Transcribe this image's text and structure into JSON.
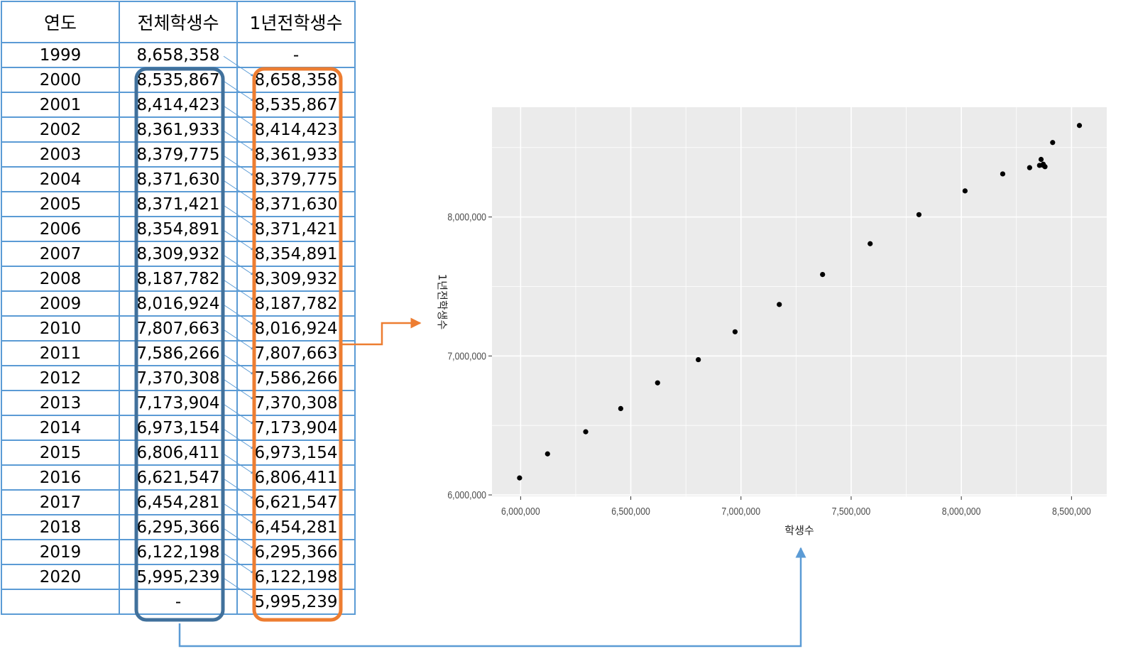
{
  "table": {
    "headers": [
      "연도",
      "전체학생수",
      "1년전학생수"
    ],
    "rows": [
      [
        "1999",
        "8,658,358",
        "-"
      ],
      [
        "2000",
        "8,535,867",
        "8,658,358"
      ],
      [
        "2001",
        "8,414,423",
        "8,535,867"
      ],
      [
        "2002",
        "8,361,933",
        "8,414,423"
      ],
      [
        "2003",
        "8,379,775",
        "8,361,933"
      ],
      [
        "2004",
        "8,371,630",
        "8,379,775"
      ],
      [
        "2005",
        "8,371,421",
        "8,371,630"
      ],
      [
        "2006",
        "8,354,891",
        "8,371,421"
      ],
      [
        "2007",
        "8,309,932",
        "8,354,891"
      ],
      [
        "2008",
        "8,187,782",
        "8,309,932"
      ],
      [
        "2009",
        "8,016,924",
        "8,187,782"
      ],
      [
        "2010",
        "7,807,663",
        "8,016,924"
      ],
      [
        "2011",
        "7,586,266",
        "7,807,663"
      ],
      [
        "2012",
        "7,370,308",
        "7,586,266"
      ],
      [
        "2013",
        "7,173,904",
        "7,370,308"
      ],
      [
        "2014",
        "6,973,154",
        "7,173,904"
      ],
      [
        "2015",
        "6,806,411",
        "6,973,154"
      ],
      [
        "2016",
        "6,621,547",
        "6,806,411"
      ],
      [
        "2017",
        "6,454,281",
        "6,621,547"
      ],
      [
        "2018",
        "6,295,366",
        "6,454,281"
      ],
      [
        "2019",
        "6,122,198",
        "6,295,366"
      ],
      [
        "2020",
        "5,995,239",
        "6,122,198"
      ],
      [
        "",
        "-",
        "5,995,239"
      ]
    ]
  },
  "colors": {
    "table_border": "#5b9bd5",
    "current_box": "#41719c",
    "lag_box": "#ed7d31",
    "shift_arrows": "#5b9bd5",
    "panel_bg": "#ebebeb",
    "grid": "#ffffff",
    "point": "#000000"
  },
  "chart_data": {
    "type": "scatter",
    "xlabel": "학생수",
    "ylabel": "1년전학생수",
    "xlim": [
      5870000,
      8660000
    ],
    "ylim": [
      5990000,
      8790000
    ],
    "xticks": [
      6000000,
      6500000,
      7000000,
      7500000,
      8000000,
      8500000
    ],
    "xtick_labels": [
      "6,000,000",
      "6,500,000",
      "7,000,000",
      "7,500,000",
      "8,000,000",
      "8,500,000"
    ],
    "yticks": [
      6000000,
      7000000,
      8000000
    ],
    "ytick_labels": [
      "6,000,000",
      "7,000,000",
      "8,000,000"
    ],
    "grid": true,
    "x": [
      8535867,
      8414423,
      8361933,
      8379775,
      8371630,
      8371421,
      8354891,
      8309932,
      8187782,
      8016924,
      7807663,
      7586266,
      7370308,
      7173904,
      6973154,
      6806411,
      6621547,
      6454281,
      6295366,
      6122198,
      5995239
    ],
    "y": [
      8658358,
      8535867,
      8414423,
      8361933,
      8379775,
      8371630,
      8371421,
      8354891,
      8309932,
      8187782,
      8016924,
      7807663,
      7586266,
      7370308,
      7173904,
      6973154,
      6806411,
      6621547,
      6454281,
      6295366,
      6122198
    ]
  }
}
